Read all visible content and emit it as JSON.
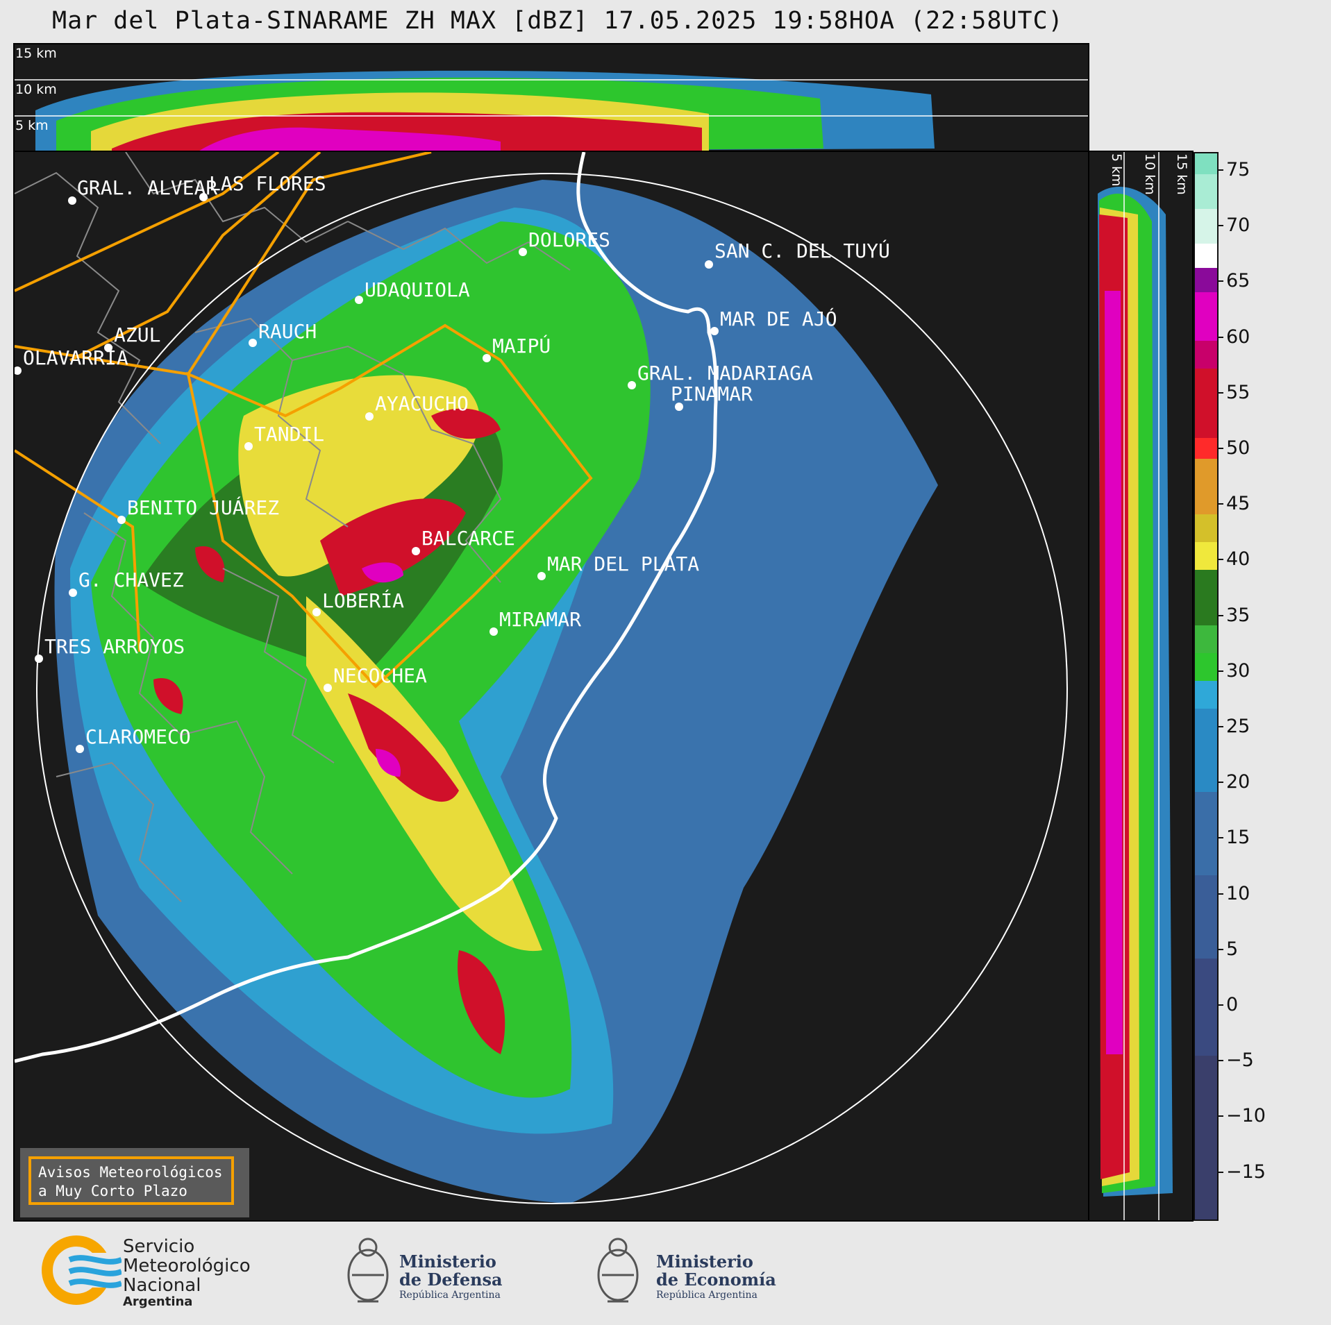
{
  "title": "Mar del Plata-SINARAME ZH MAX [dBZ] 17.05.2025 19:58HOA (22:58UTC)",
  "top_panel": {
    "km_labels": [
      "15 km",
      "10 km",
      "5 km"
    ]
  },
  "right_panel": {
    "km_labels": [
      "5 km",
      "10 km",
      "15 km"
    ]
  },
  "colorbar": {
    "unit": "dBZ",
    "ticks": [
      "75",
      "70",
      "65",
      "60",
      "55",
      "50",
      "45",
      "40",
      "35",
      "30",
      "25",
      "20",
      "15",
      "10",
      "5",
      "0",
      "−5",
      "−10",
      "−15"
    ],
    "colors": {
      "deep_blue": "#3a3f6b",
      "blue": "#3a6ea8",
      "light_blue": "#2fa8d8",
      "green": "#2dc62d",
      "dark_green": "#2a7a1f",
      "yellow": "#f0e83c",
      "orange": "#e09a2a",
      "red": "#d0102a",
      "magenta": "#e000c0",
      "purple": "#8a0a9a",
      "white": "#ffffff",
      "mint": "#7fe0c0"
    }
  },
  "cities": [
    "GRAL. ALVEAR",
    "LAS FLORES",
    "DOLORES",
    "SAN C. DEL TUYÚ",
    "UDAQUIOLA",
    "AZUL",
    "RAUCH",
    "MAR DE AJÓ",
    "OLAVARRÍA",
    "MAIPÚ",
    "GRAL. MADARIAGA",
    "PINAMAR",
    "AYACUCHO",
    "TANDIL",
    "BENITO JUÁREZ",
    "BALCARCE",
    "MAR DEL PLATA",
    "G. CHAVEZ",
    "LOBERÍA",
    "MIRAMAR",
    "TRES ARROYOS",
    "NECOCHEA",
    "CLAROMECO"
  ],
  "aviso": {
    "line1": "Avisos Meteorológicos",
    "line2": "a Muy Corto Plazo"
  },
  "logos": {
    "smn": {
      "line1": "Servicio",
      "line2": "Meteorológico",
      "line3": "Nacional",
      "line4": "Argentina"
    },
    "defensa": {
      "line1": "Ministerio",
      "line2": "de Defensa",
      "line3": "República Argentina"
    },
    "economia": {
      "line1": "Ministerio",
      "line2": "de Economía",
      "line3": "República Argentina"
    }
  }
}
